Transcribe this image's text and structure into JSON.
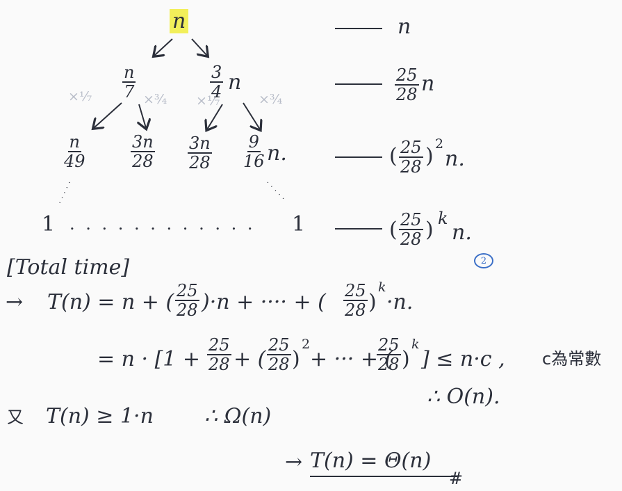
{
  "tree": {
    "root": "n",
    "level1": {
      "left": {
        "num": "n",
        "den": "7"
      },
      "right": {
        "num": "3",
        "den": "4",
        "suffix": "n"
      }
    },
    "side_notes": {
      "a": "×⅐",
      "b": "×¾",
      "c": "×⅐",
      "d": "×¾"
    },
    "level2": [
      {
        "num": "n",
        "den": "49"
      },
      {
        "num": "3n",
        "den": "28"
      },
      {
        "num": "3n",
        "den": "28"
      },
      {
        "num": "9",
        "den": "16",
        "suffix": "n."
      }
    ],
    "vertical_dots": "⋮",
    "leaf_left": "1",
    "leaf_dots": ". . . . . . . . . . . .",
    "leaf_right": "1"
  },
  "level_costs": [
    {
      "text": "n"
    },
    {
      "num": "25",
      "den": "28",
      "suffix": "n"
    },
    {
      "num": "25",
      "den": "28",
      "exp": "2",
      "suffix": "n."
    },
    {
      "num": "25",
      "den": "28",
      "exp": "k",
      "suffix": "n."
    }
  ],
  "circled_mark": "2",
  "total_time_header": "[Total time]",
  "line1": {
    "arrow": "→",
    "lhs": "T(n) = n + (",
    "f1": {
      "num": "25",
      "den": "28"
    },
    "mid": ")·n + ···· + (",
    "f2": {
      "num": "25",
      "den": "28"
    },
    "exp": "k",
    "tail": "·n."
  },
  "line2": {
    "start": "= n · [1 +",
    "f1": {
      "num": "25",
      "den": "28"
    },
    "plus_open": "+ (",
    "f2": {
      "num": "25",
      "den": "28"
    },
    "exp2": "2",
    "mid": "+ ··· + (",
    "f3": {
      "num": "25",
      "den": "28"
    },
    "expk": "k",
    "tail": "] ≤ n·c ,",
    "note": "c為常數"
  },
  "therefore_O": "∴  O(n).",
  "line3": {
    "prefix": "又",
    "expr": "T(n) ≥ 1·n",
    "conclusion": "∴ Ω(n)"
  },
  "final": {
    "arrow": "→",
    "expr": "T(n) = Θ(n)",
    "mark": "#"
  }
}
